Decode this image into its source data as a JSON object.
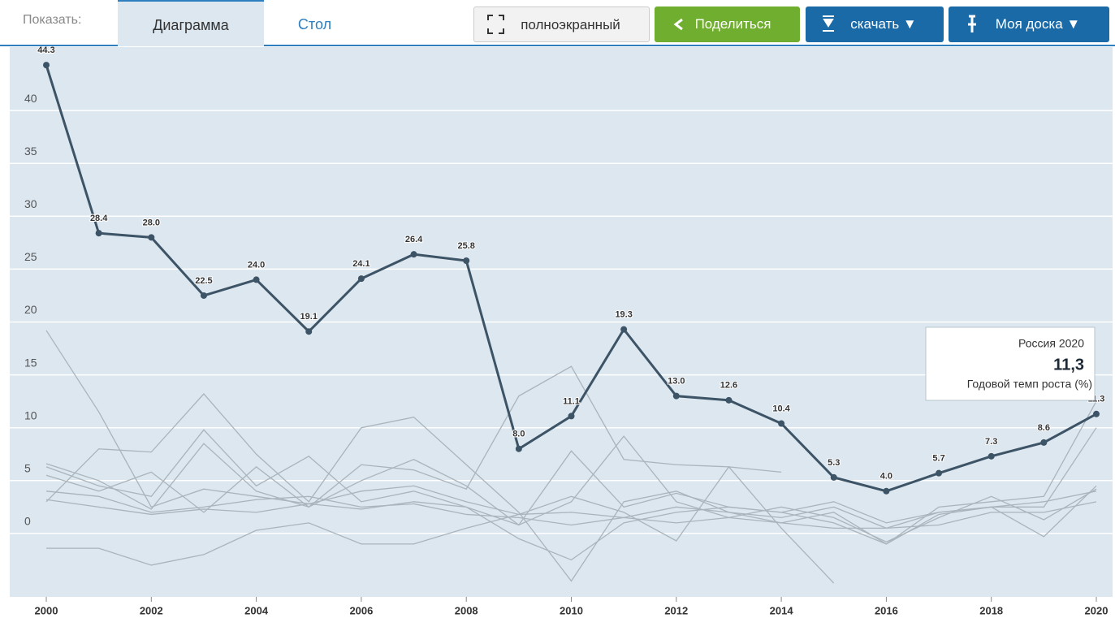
{
  "toolbar": {
    "show_label": "Показать:",
    "tabs": [
      "Диаграмма",
      "Стол"
    ],
    "buttons": [
      "полноэкранный",
      "Поделиться",
      "скачать ▼",
      "Моя доска ▼"
    ]
  },
  "chart_data": {
    "type": "line",
    "x": [
      2000,
      2001,
      2002,
      2003,
      2004,
      2005,
      2006,
      2007,
      2008,
      2009,
      2010,
      2011,
      2012,
      2013,
      2014,
      2015,
      2016,
      2017,
      2018,
      2019,
      2020
    ],
    "xlim": [
      2000,
      2020
    ],
    "xticks": [
      2000,
      2002,
      2004,
      2006,
      2008,
      2010,
      2012,
      2014,
      2016,
      2018,
      2020
    ],
    "ylim": [
      -6,
      46
    ],
    "yticks": [
      0,
      5,
      10,
      15,
      20,
      25,
      30,
      35,
      40
    ],
    "grid": true,
    "series": [
      {
        "color": "#3d5366",
        "values": [
          44.3,
          28.4,
          28.0,
          22.5,
          24.0,
          19.1,
          24.1,
          26.4,
          25.8,
          8.0,
          11.1,
          19.3,
          13.0,
          12.6,
          10.4,
          5.3,
          4.0,
          5.7,
          7.3,
          8.6,
          11.3
        ],
        "value_labels": [
          "44.3",
          "28.4",
          "28.0",
          "22.5",
          "24.0",
          "19.1",
          "24.1",
          "26.4",
          "25.8",
          "8.0",
          "11.1",
          "19.3",
          "13.0",
          "12.6",
          "10.4",
          "5.3",
          "4.0",
          "5.7",
          "7.3",
          "8.6",
          "11.3"
        ]
      },
      {
        "color": "#a9b4bb",
        "values": [
          19.2,
          11.5,
          2.5,
          4.2,
          3.5,
          2.8,
          4.0,
          4.5,
          3.0,
          1.8,
          2.0,
          1.5,
          2.5,
          2.0,
          1.5,
          2.5,
          0.5,
          2.0,
          2.5,
          3.0,
          4.0
        ]
      },
      {
        "color": "#a9b4bb",
        "values": [
          6.6,
          5.0,
          2.3,
          8.5,
          4.0,
          2.5,
          6.5,
          6.0,
          4.2,
          13.0,
          15.8,
          7.0,
          6.5,
          6.3,
          5.8,
          null,
          null,
          null,
          null,
          null,
          null
        ]
      },
      {
        "color": "#a9b4bb",
        "values": [
          -1.4,
          -1.4,
          -3.0,
          -2.0,
          0.3,
          1.0,
          -1.0,
          -1.0,
          0.5,
          1.8,
          3.5,
          2.0,
          -0.7,
          6.3,
          0.5,
          -4.7,
          null,
          null,
          null,
          null,
          null
        ]
      },
      {
        "color": "#a9b4bb",
        "values": [
          3.0,
          8.0,
          7.7,
          13.2,
          7.5,
          3.0,
          10.0,
          11.0,
          6.5,
          2.0,
          -4.5,
          3.0,
          4.0,
          2.0,
          1.0,
          2.0,
          -1.0,
          2.5,
          3.0,
          3.5,
          12.5
        ]
      },
      {
        "color": "#a9b4bb",
        "values": [
          5.5,
          4.0,
          5.8,
          2.0,
          6.3,
          2.5,
          5.0,
          7.0,
          4.5,
          0.8,
          7.8,
          2.5,
          3.8,
          2.5,
          2.0,
          3.0,
          1.0,
          2.0,
          2.5,
          2.5,
          10.0
        ]
      },
      {
        "color": "#a9b4bb",
        "values": [
          6.3,
          4.5,
          3.5,
          9.8,
          4.5,
          7.3,
          3.0,
          4.0,
          2.5,
          0.8,
          3.0,
          9.2,
          3.0,
          1.5,
          2.5,
          1.5,
          -0.8,
          1.5,
          3.5,
          1.3,
          4.2
        ]
      },
      {
        "color": "#a9b4bb",
        "values": [
          4.0,
          3.5,
          2.0,
          2.5,
          3.2,
          3.5,
          2.5,
          2.8,
          1.8,
          1.5,
          0.8,
          1.5,
          1.0,
          1.5,
          1.0,
          0.5,
          0.5,
          0.8,
          2.0,
          2.0,
          3.0
        ]
      },
      {
        "color": "#a9b4bb",
        "values": [
          3.2,
          2.5,
          1.8,
          2.3,
          2.0,
          2.8,
          2.3,
          3.0,
          2.5,
          -0.5,
          -2.5,
          1.0,
          2.0,
          2.5,
          2.0,
          1.0,
          -1.0,
          1.8,
          2.5,
          -0.3,
          4.5
        ]
      }
    ],
    "tooltip": {
      "title": "Россия 2020",
      "value": "11,3",
      "subtitle": "Годовой темп роста (%)"
    }
  }
}
